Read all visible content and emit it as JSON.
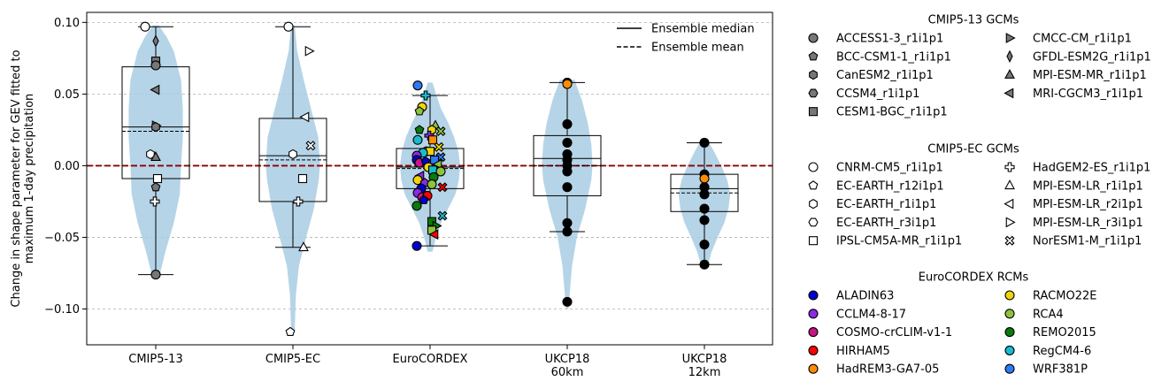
{
  "chart_data": {
    "type": "violin-box-scatter",
    "ylabel": "Change in shape parameter for GEV fitted to\nmaximum 1-day precipitation",
    "ylim": [
      -0.125,
      0.107
    ],
    "yticks": [
      -0.1,
      -0.05,
      0.0,
      0.05,
      0.1
    ],
    "ytick_labels": [
      "−0.10",
      "−0.05",
      "0.00",
      "0.05",
      "0.10"
    ],
    "grid": "horizontal dashed",
    "reference_line": 0,
    "categories": [
      "CMIP5-13",
      "CMIP5-EC",
      "EuroCORDEX",
      "UKCP18\n60km",
      "UKCP18\n12km"
    ],
    "boxes": [
      {
        "whisker_low": -0.076,
        "q1": -0.009,
        "median": 0.027,
        "mean": 0.024,
        "q3": 0.069,
        "whisker_high": 0.097
      },
      {
        "whisker_low": -0.057,
        "q1": -0.025,
        "median": 0.007,
        "mean": 0.004,
        "q3": 0.033,
        "whisker_high": 0.097
      },
      {
        "whisker_low": -0.056,
        "q1": -0.016,
        "median": -0.001,
        "mean": -0.002,
        "q3": 0.012,
        "whisker_high": 0.049
      },
      {
        "whisker_low": -0.046,
        "q1": -0.021,
        "median": 0.005,
        "mean": 0.0,
        "q3": 0.021,
        "whisker_high": 0.058
      },
      {
        "whisker_low": -0.069,
        "q1": -0.032,
        "median": -0.016,
        "mean": -0.019,
        "q3": -0.006,
        "whisker_high": 0.016
      }
    ],
    "violins": [
      {
        "min": -0.079,
        "max": 0.098,
        "profile": [
          [
            -0.079,
            0.05
          ],
          [
            -0.06,
            0.16
          ],
          [
            -0.04,
            0.3
          ],
          [
            -0.02,
            0.4
          ],
          [
            0.0,
            0.42
          ],
          [
            0.02,
            0.45
          ],
          [
            0.04,
            0.45
          ],
          [
            0.06,
            0.42
          ],
          [
            0.08,
            0.3
          ],
          [
            0.09,
            0.18
          ],
          [
            0.098,
            0.05
          ]
        ]
      },
      {
        "min": -0.116,
        "max": 0.098,
        "profile": [
          [
            -0.116,
            0.03
          ],
          [
            -0.09,
            0.05
          ],
          [
            -0.07,
            0.1
          ],
          [
            -0.05,
            0.22
          ],
          [
            -0.03,
            0.35
          ],
          [
            -0.01,
            0.43
          ],
          [
            0.0,
            0.45
          ],
          [
            0.02,
            0.42
          ],
          [
            0.04,
            0.3
          ],
          [
            0.06,
            0.18
          ],
          [
            0.08,
            0.07
          ],
          [
            0.098,
            0.03
          ]
        ]
      },
      {
        "min": -0.06,
        "max": 0.058,
        "profile": [
          [
            -0.06,
            0.04
          ],
          [
            -0.05,
            0.1
          ],
          [
            -0.04,
            0.18
          ],
          [
            -0.03,
            0.3
          ],
          [
            -0.02,
            0.42
          ],
          [
            -0.01,
            0.48
          ],
          [
            0.0,
            0.5
          ],
          [
            0.01,
            0.47
          ],
          [
            0.02,
            0.4
          ],
          [
            0.03,
            0.3
          ],
          [
            0.04,
            0.18
          ],
          [
            0.05,
            0.1
          ],
          [
            0.058,
            0.04
          ]
        ]
      },
      {
        "min": -0.1,
        "max": 0.06,
        "profile": [
          [
            -0.1,
            0.02
          ],
          [
            -0.085,
            0.05
          ],
          [
            -0.07,
            0.08
          ],
          [
            -0.05,
            0.16
          ],
          [
            -0.03,
            0.3
          ],
          [
            -0.01,
            0.4
          ],
          [
            0.0,
            0.42
          ],
          [
            0.015,
            0.4
          ],
          [
            0.03,
            0.34
          ],
          [
            0.045,
            0.25
          ],
          [
            0.06,
            0.12
          ]
        ]
      },
      {
        "min": -0.072,
        "max": 0.018,
        "profile": [
          [
            -0.072,
            0.04
          ],
          [
            -0.06,
            0.12
          ],
          [
            -0.05,
            0.22
          ],
          [
            -0.04,
            0.33
          ],
          [
            -0.03,
            0.4
          ],
          [
            -0.02,
            0.43
          ],
          [
            -0.01,
            0.38
          ],
          [
            0.0,
            0.28
          ],
          [
            0.01,
            0.16
          ],
          [
            0.018,
            0.05
          ]
        ]
      }
    ],
    "points": [
      {
        "g": 0,
        "dx": -0.12,
        "y": 0.097,
        "m": "circle",
        "c": "#ffffff"
      },
      {
        "g": 0,
        "dx": 0.0,
        "y": 0.087,
        "m": "thin_diamond",
        "c": "#777777"
      },
      {
        "g": 0,
        "dx": 0.0,
        "y": 0.073,
        "m": "square",
        "c": "#777777"
      },
      {
        "g": 0,
        "dx": 0.0,
        "y": 0.07,
        "m": "circle",
        "c": "#777777"
      },
      {
        "g": 0,
        "dx": 0.0,
        "y": 0.053,
        "m": "tri_left",
        "c": "#777777"
      },
      {
        "g": 0,
        "dx": 0.0,
        "y": 0.028,
        "m": "tri_right",
        "c": "#777777"
      },
      {
        "g": 0,
        "dx": 0.0,
        "y": 0.027,
        "m": "hexagon",
        "c": "#777777"
      },
      {
        "g": 0,
        "dx": -0.06,
        "y": 0.008,
        "m": "hexagon",
        "c": "#ffffff"
      },
      {
        "g": 0,
        "dx": 0.0,
        "y": 0.006,
        "m": "tri_up",
        "c": "#777777"
      },
      {
        "g": 0,
        "dx": 0.02,
        "y": -0.009,
        "m": "square",
        "c": "#ffffff"
      },
      {
        "g": 0,
        "dx": 0.0,
        "y": -0.015,
        "m": "pentagon",
        "c": "#777777"
      },
      {
        "g": 0,
        "dx": -0.01,
        "y": -0.025,
        "m": "plus",
        "c": "#ffffff"
      },
      {
        "g": 0,
        "dx": 0.0,
        "y": -0.076,
        "m": "circle",
        "c": "#777777"
      },
      {
        "g": 1,
        "dx": -0.05,
        "y": 0.097,
        "m": "circle",
        "c": "#ffffff"
      },
      {
        "g": 1,
        "dx": 0.18,
        "y": 0.08,
        "m": "tri_right",
        "c": "#ffffff"
      },
      {
        "g": 1,
        "dx": 0.14,
        "y": 0.034,
        "m": "tri_left",
        "c": "#ffffff"
      },
      {
        "g": 1,
        "dx": 0.2,
        "y": 0.014,
        "m": "x_cross",
        "c": "#ffffff"
      },
      {
        "g": 1,
        "dx": 0.0,
        "y": 0.008,
        "m": "hexagon",
        "c": "#ffffff"
      },
      {
        "g": 1,
        "dx": 0.11,
        "y": -0.009,
        "m": "square",
        "c": "#ffffff"
      },
      {
        "g": 1,
        "dx": 0.06,
        "y": -0.025,
        "m": "plus",
        "c": "#ffffff"
      },
      {
        "g": 1,
        "dx": 0.12,
        "y": -0.057,
        "m": "tri_up",
        "c": "#ffffff"
      },
      {
        "g": 1,
        "dx": -0.03,
        "y": -0.116,
        "m": "pentagon",
        "c": "#ffffff"
      },
      {
        "g": 2,
        "dx": -0.14,
        "y": 0.056,
        "m": "circle",
        "c": "#2d7bf5"
      },
      {
        "g": 2,
        "dx": -0.05,
        "y": 0.049,
        "m": "plus",
        "c": "#17bccf"
      },
      {
        "g": 2,
        "dx": -0.09,
        "y": 0.041,
        "m": "circle",
        "c": "#f2d40a"
      },
      {
        "g": 2,
        "dx": -0.12,
        "y": 0.038,
        "m": "pentagon",
        "c": "#8cc43c"
      },
      {
        "g": 2,
        "dx": 0.06,
        "y": 0.028,
        "m": "tri_up",
        "c": "#8cc43c"
      },
      {
        "g": 2,
        "dx": 0.12,
        "y": 0.024,
        "m": "x_cross",
        "c": "#8cc43c"
      },
      {
        "g": 2,
        "dx": -0.12,
        "y": 0.025,
        "m": "pentagon",
        "c": "#0a7a0a"
      },
      {
        "g": 2,
        "dx": 0.02,
        "y": 0.025,
        "m": "hexagon",
        "c": "#f2d40a"
      },
      {
        "g": 2,
        "dx": -0.01,
        "y": 0.021,
        "m": "plus",
        "c": "#8a2be2"
      },
      {
        "g": 2,
        "dx": 0.03,
        "y": 0.018,
        "m": "square",
        "c": "#ff8c00"
      },
      {
        "g": 2,
        "dx": -0.14,
        "y": 0.018,
        "m": "circle",
        "c": "#17bccf"
      },
      {
        "g": 2,
        "dx": 0.1,
        "y": 0.013,
        "m": "x_cross",
        "c": "#f2d40a"
      },
      {
        "g": 2,
        "dx": -0.04,
        "y": 0.01,
        "m": "circle",
        "c": "#ff8c00"
      },
      {
        "g": 2,
        "dx": 0.0,
        "y": 0.01,
        "m": "square",
        "c": "#f2d40a"
      },
      {
        "g": 2,
        "dx": 0.12,
        "y": 0.006,
        "m": "x_cross",
        "c": "#2d7bf5"
      },
      {
        "g": 2,
        "dx": -0.08,
        "y": 0.009,
        "m": "circle",
        "c": "#17bccf"
      },
      {
        "g": 2,
        "dx": -0.15,
        "y": 0.007,
        "m": "circle",
        "c": "#8a2be2"
      },
      {
        "g": 2,
        "dx": -0.15,
        "y": 0.004,
        "m": "circle",
        "c": "#0000cd"
      },
      {
        "g": 2,
        "dx": -0.12,
        "y": 0.002,
        "m": "circle",
        "c": "#c71585"
      },
      {
        "g": 2,
        "dx": 0.05,
        "y": 0.004,
        "m": "square",
        "c": "#2d7bf5"
      },
      {
        "g": 2,
        "dx": 0.09,
        "y": 0.001,
        "m": "tri_left",
        "c": "#8cc43c"
      },
      {
        "g": 2,
        "dx": -0.05,
        "y": 0.003,
        "m": "pentagon",
        "c": "#0000cd"
      },
      {
        "g": 2,
        "dx": -0.02,
        "y": -0.001,
        "m": "circle",
        "c": "#f2d40a"
      },
      {
        "g": 2,
        "dx": 0.03,
        "y": -0.003,
        "m": "square",
        "c": "#17bccf"
      },
      {
        "g": 2,
        "dx": 0.12,
        "y": -0.004,
        "m": "circle",
        "c": "#8cc43c"
      },
      {
        "g": 2,
        "dx": -0.11,
        "y": -0.007,
        "m": "tri_left",
        "c": "#8a2be2"
      },
      {
        "g": 2,
        "dx": 0.04,
        "y": -0.008,
        "m": "circle",
        "c": "#0a7a0a"
      },
      {
        "g": 2,
        "dx": -0.14,
        "y": -0.01,
        "m": "circle",
        "c": "#f2d40a"
      },
      {
        "g": 2,
        "dx": -0.06,
        "y": -0.012,
        "m": "pentagon",
        "c": "#8a2be2"
      },
      {
        "g": 2,
        "dx": 0.02,
        "y": -0.013,
        "m": "circle",
        "c": "#8cc43c"
      },
      {
        "g": 2,
        "dx": 0.14,
        "y": -0.015,
        "m": "x_cross",
        "c": "#ff0000"
      },
      {
        "g": 2,
        "dx": -0.1,
        "y": -0.016,
        "m": "circle",
        "c": "#0000cd"
      },
      {
        "g": 2,
        "dx": -0.14,
        "y": -0.019,
        "m": "circle",
        "c": "#8a2be2"
      },
      {
        "g": 2,
        "dx": -0.09,
        "y": -0.022,
        "m": "circle",
        "c": "#c71585"
      },
      {
        "g": 2,
        "dx": -0.03,
        "y": -0.021,
        "m": "circle",
        "c": "#ff0000"
      },
      {
        "g": 2,
        "dx": -0.07,
        "y": -0.024,
        "m": "pentagon",
        "c": "#0000cd"
      },
      {
        "g": 2,
        "dx": -0.15,
        "y": -0.028,
        "m": "circle",
        "c": "#0a7a0a"
      },
      {
        "g": 2,
        "dx": 0.14,
        "y": -0.035,
        "m": "x_cross",
        "c": "#17bccf"
      },
      {
        "g": 2,
        "dx": 0.02,
        "y": -0.039,
        "m": "square",
        "c": "#0a7a0a"
      },
      {
        "g": 2,
        "dx": 0.07,
        "y": -0.042,
        "m": "tri_right",
        "c": "#0a7a0a"
      },
      {
        "g": 2,
        "dx": 0.02,
        "y": -0.045,
        "m": "square",
        "c": "#8cc43c"
      },
      {
        "g": 2,
        "dx": 0.05,
        "y": -0.048,
        "m": "tri_left",
        "c": "#ff0000"
      },
      {
        "g": 2,
        "dx": -0.15,
        "y": -0.056,
        "m": "circle",
        "c": "#0000cd"
      },
      {
        "g": 3,
        "dx": 0.0,
        "y": 0.058,
        "m": "circle",
        "c": "#000000"
      },
      {
        "g": 3,
        "dx": 0.0,
        "y": 0.057,
        "m": "circle",
        "c": "#ff8c00"
      },
      {
        "g": 3,
        "dx": 0.0,
        "y": 0.029,
        "m": "circle",
        "c": "#000000"
      },
      {
        "g": 3,
        "dx": 0.0,
        "y": 0.016,
        "m": "circle",
        "c": "#000000"
      },
      {
        "g": 3,
        "dx": 0.0,
        "y": 0.008,
        "m": "circle",
        "c": "#000000"
      },
      {
        "g": 3,
        "dx": 0.0,
        "y": 0.004,
        "m": "circle",
        "c": "#000000"
      },
      {
        "g": 3,
        "dx": 0.0,
        "y": 0.0,
        "m": "circle",
        "c": "#000000"
      },
      {
        "g": 3,
        "dx": 0.0,
        "y": -0.004,
        "m": "circle",
        "c": "#000000"
      },
      {
        "g": 3,
        "dx": 0.0,
        "y": -0.015,
        "m": "circle",
        "c": "#000000"
      },
      {
        "g": 3,
        "dx": 0.0,
        "y": -0.04,
        "m": "circle",
        "c": "#000000"
      },
      {
        "g": 3,
        "dx": 0.0,
        "y": -0.046,
        "m": "circle",
        "c": "#000000"
      },
      {
        "g": 3,
        "dx": 0.0,
        "y": -0.095,
        "m": "circle",
        "c": "#000000"
      },
      {
        "g": 4,
        "dx": 0.0,
        "y": 0.016,
        "m": "circle",
        "c": "#000000"
      },
      {
        "g": 4,
        "dx": 0.0,
        "y": -0.006,
        "m": "circle",
        "c": "#000000"
      },
      {
        "g": 4,
        "dx": 0.0,
        "y": -0.009,
        "m": "circle",
        "c": "#ff8c00"
      },
      {
        "g": 4,
        "dx": 0.0,
        "y": -0.015,
        "m": "circle",
        "c": "#000000"
      },
      {
        "g": 4,
        "dx": 0.0,
        "y": -0.02,
        "m": "circle",
        "c": "#000000"
      },
      {
        "g": 4,
        "dx": 0.0,
        "y": -0.03,
        "m": "circle",
        "c": "#000000"
      },
      {
        "g": 4,
        "dx": 0.0,
        "y": -0.038,
        "m": "circle",
        "c": "#000000"
      },
      {
        "g": 4,
        "dx": 0.0,
        "y": -0.055,
        "m": "circle",
        "c": "#000000"
      },
      {
        "g": 4,
        "dx": 0.0,
        "y": -0.069,
        "m": "circle",
        "c": "#000000"
      }
    ],
    "line_legend": [
      {
        "label": "Ensemble median",
        "style": "solid"
      },
      {
        "label": "Ensemble mean",
        "style": "dashed"
      }
    ],
    "marker_legend": [
      {
        "title": "CMIP5-13 GCMs",
        "col1": [
          {
            "label": "ACCESS1-3_r1i1p1",
            "m": "circle",
            "c": "#777777"
          },
          {
            "label": "BCC-CSM1-1_r1i1p1",
            "m": "pentagon",
            "c": "#777777"
          },
          {
            "label": "CanESM2_r1i1p1",
            "m": "hexagon",
            "c": "#777777"
          },
          {
            "label": "CCSM4_r1i1p1",
            "m": "hexagon2",
            "c": "#777777"
          },
          {
            "label": "CESM1-BGC_r1i1p1",
            "m": "square",
            "c": "#777777"
          }
        ],
        "col2": [
          {
            "label": "CMCC-CM_r1i1p1",
            "m": "tri_right",
            "c": "#777777"
          },
          {
            "label": "GFDL-ESM2G_r1i1p1",
            "m": "thin_diamond",
            "c": "#777777"
          },
          {
            "label": "MPI-ESM-MR_r1i1p1",
            "m": "tri_up",
            "c": "#777777"
          },
          {
            "label": "MRI-CGCM3_r1i1p1",
            "m": "tri_left",
            "c": "#777777"
          }
        ]
      },
      {
        "title": "CMIP5-EC GCMs",
        "col1": [
          {
            "label": "CNRM-CM5_r1i1p1",
            "m": "circle",
            "c": "#ffffff"
          },
          {
            "label": "EC-EARTH_r12i1p1",
            "m": "pentagon",
            "c": "#ffffff"
          },
          {
            "label": "EC-EARTH_r1i1p1",
            "m": "hexagon",
            "c": "#ffffff"
          },
          {
            "label": "EC-EARTH_r3i1p1",
            "m": "hexagon2",
            "c": "#ffffff"
          },
          {
            "label": "IPSL-CM5A-MR_r1i1p1",
            "m": "square",
            "c": "#ffffff"
          }
        ],
        "col2": [
          {
            "label": "HadGEM2-ES_r1i1p1",
            "m": "plus",
            "c": "#ffffff"
          },
          {
            "label": "MPI-ESM-LR_r1i1p1",
            "m": "tri_up",
            "c": "#ffffff"
          },
          {
            "label": "MPI-ESM-LR_r2i1p1",
            "m": "tri_left",
            "c": "#ffffff"
          },
          {
            "label": "MPI-ESM-LR_r3i1p1",
            "m": "tri_right",
            "c": "#ffffff"
          },
          {
            "label": "NorESM1-M_r1i1p1",
            "m": "x_cross",
            "c": "#ffffff"
          }
        ]
      },
      {
        "title": "EuroCORDEX RCMs",
        "col1": [
          {
            "label": "ALADIN63",
            "m": "circle",
            "c": "#0000cd"
          },
          {
            "label": "CCLM4-8-17",
            "m": "circle",
            "c": "#8a2be2"
          },
          {
            "label": "COSMO-crCLIM-v1-1",
            "m": "circle",
            "c": "#c71585"
          },
          {
            "label": "HIRHAM5",
            "m": "circle",
            "c": "#ff0000"
          },
          {
            "label": "HadREM3-GA7-05",
            "m": "circle",
            "c": "#ff8c00"
          }
        ],
        "col2": [
          {
            "label": "RACMO22E",
            "m": "circle",
            "c": "#f2d40a"
          },
          {
            "label": "RCA4",
            "m": "circle",
            "c": "#8cc43c"
          },
          {
            "label": "REMO2015",
            "m": "circle",
            "c": "#0a7a0a"
          },
          {
            "label": "RegCM4-6",
            "m": "circle",
            "c": "#17bccf"
          },
          {
            "label": "WRF381P",
            "m": "circle",
            "c": "#2d7bf5"
          }
        ]
      }
    ],
    "colors": {
      "violin": "#a9cce3",
      "zero_line": "#8b0000",
      "grid": "#b0b0b0"
    }
  }
}
